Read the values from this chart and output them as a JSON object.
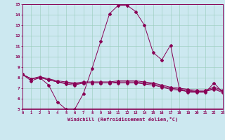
{
  "xlabel": "Windchill (Refroidissement éolien,°C)",
  "x_ticks": [
    0,
    1,
    2,
    3,
    4,
    5,
    6,
    7,
    8,
    9,
    10,
    11,
    12,
    13,
    14,
    15,
    16,
    17,
    18,
    19,
    20,
    21,
    22,
    23
  ],
  "ylim": [
    5,
    15
  ],
  "xlim": [
    0,
    23
  ],
  "bg_color": "#cce8f0",
  "line_color": "#880055",
  "grid_color": "#99ccbb",
  "line1_y": [
    8.3,
    7.7,
    8.0,
    7.3,
    5.7,
    5.0,
    5.0,
    6.5,
    8.9,
    11.5,
    14.1,
    14.9,
    14.9,
    14.3,
    13.0,
    10.4,
    9.7,
    11.1,
    7.0,
    6.6,
    6.6,
    6.6,
    7.5,
    6.6
  ],
  "line2_y": [
    8.3,
    7.9,
    8.0,
    7.8,
    7.6,
    7.4,
    7.3,
    7.5,
    7.5,
    7.5,
    7.5,
    7.5,
    7.5,
    7.5,
    7.4,
    7.3,
    7.1,
    6.9,
    6.8,
    6.7,
    6.7,
    6.7,
    6.9,
    6.6
  ],
  "line3_y": [
    8.3,
    7.9,
    8.0,
    7.8,
    7.6,
    7.5,
    7.4,
    7.5,
    7.5,
    7.5,
    7.5,
    7.6,
    7.6,
    7.6,
    7.5,
    7.4,
    7.2,
    7.0,
    6.9,
    6.8,
    6.7,
    6.7,
    7.0,
    6.7
  ],
  "line4_y": [
    8.3,
    7.9,
    8.1,
    7.9,
    7.7,
    7.6,
    7.5,
    7.6,
    7.6,
    7.6,
    7.6,
    7.7,
    7.7,
    7.7,
    7.6,
    7.5,
    7.3,
    7.1,
    7.0,
    6.9,
    6.8,
    6.8,
    7.1,
    6.8
  ],
  "yticks": [
    5,
    6,
    7,
    8,
    9,
    10,
    11,
    12,
    13,
    14,
    15
  ]
}
